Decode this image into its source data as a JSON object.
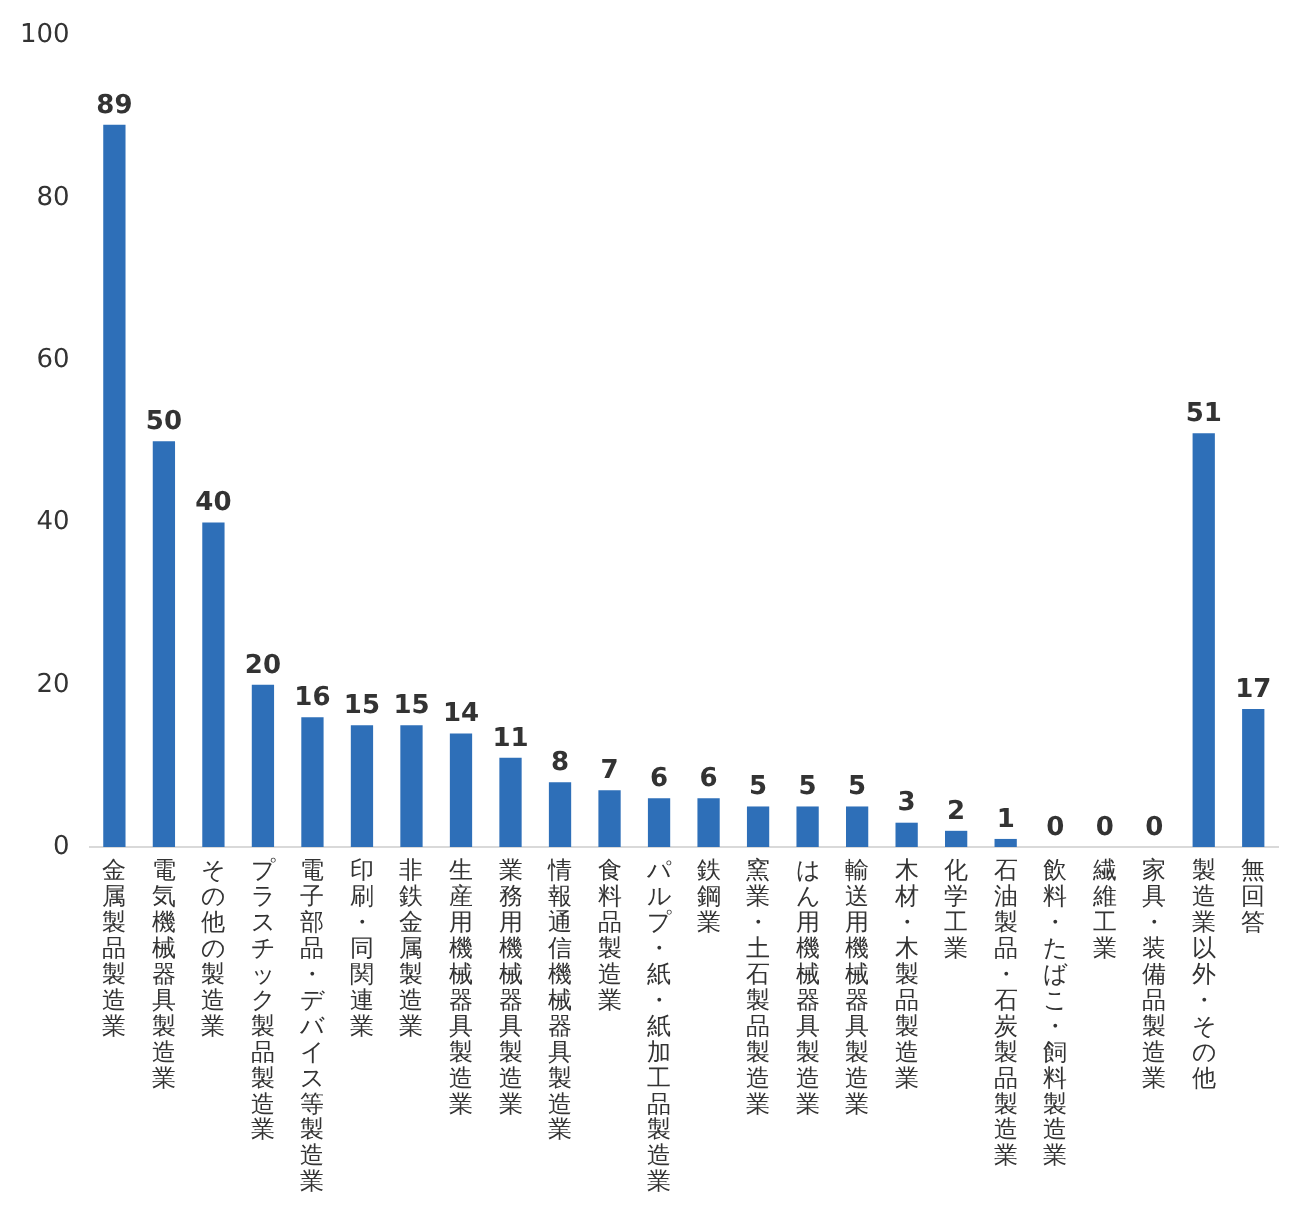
{
  "chart_data": {
    "type": "bar",
    "categories": [
      "金属製品製造業",
      "電気機械器具製造業",
      "その他の製造業",
      "プラスチック製品製造業",
      "電子部品・デバイス等製造業",
      "印刷・同関連業",
      "非鉄金属製造業",
      "生産用機械器具製造業",
      "業務用機械器具製造業",
      "情報通信機械器具製造業",
      "食料品製造業",
      "パルプ・紙・紙加工品製造業",
      "鉄鋼業",
      "窯業・土石製品製造業",
      "はん用機械器具製造業",
      "輸送用機械器具製造業",
      "木材・木製品製造業",
      "化学工業",
      "石油製品・石炭製品製造業",
      "飲料・たばこ・飼料製造業",
      "繊維工業",
      "家具・装備品製造業",
      "製造業以外・その他",
      "無回答"
    ],
    "values": [
      89,
      50,
      40,
      20,
      16,
      15,
      15,
      14,
      11,
      8,
      7,
      6,
      6,
      5,
      5,
      5,
      3,
      2,
      1,
      0,
      0,
      0,
      51,
      17
    ],
    "color": "#2e6fb8",
    "ylim": [
      0,
      100
    ],
    "yticks": [
      0,
      20,
      40,
      60,
      80,
      100
    ],
    "grid": false,
    "legend": false,
    "data_labels": true
  }
}
